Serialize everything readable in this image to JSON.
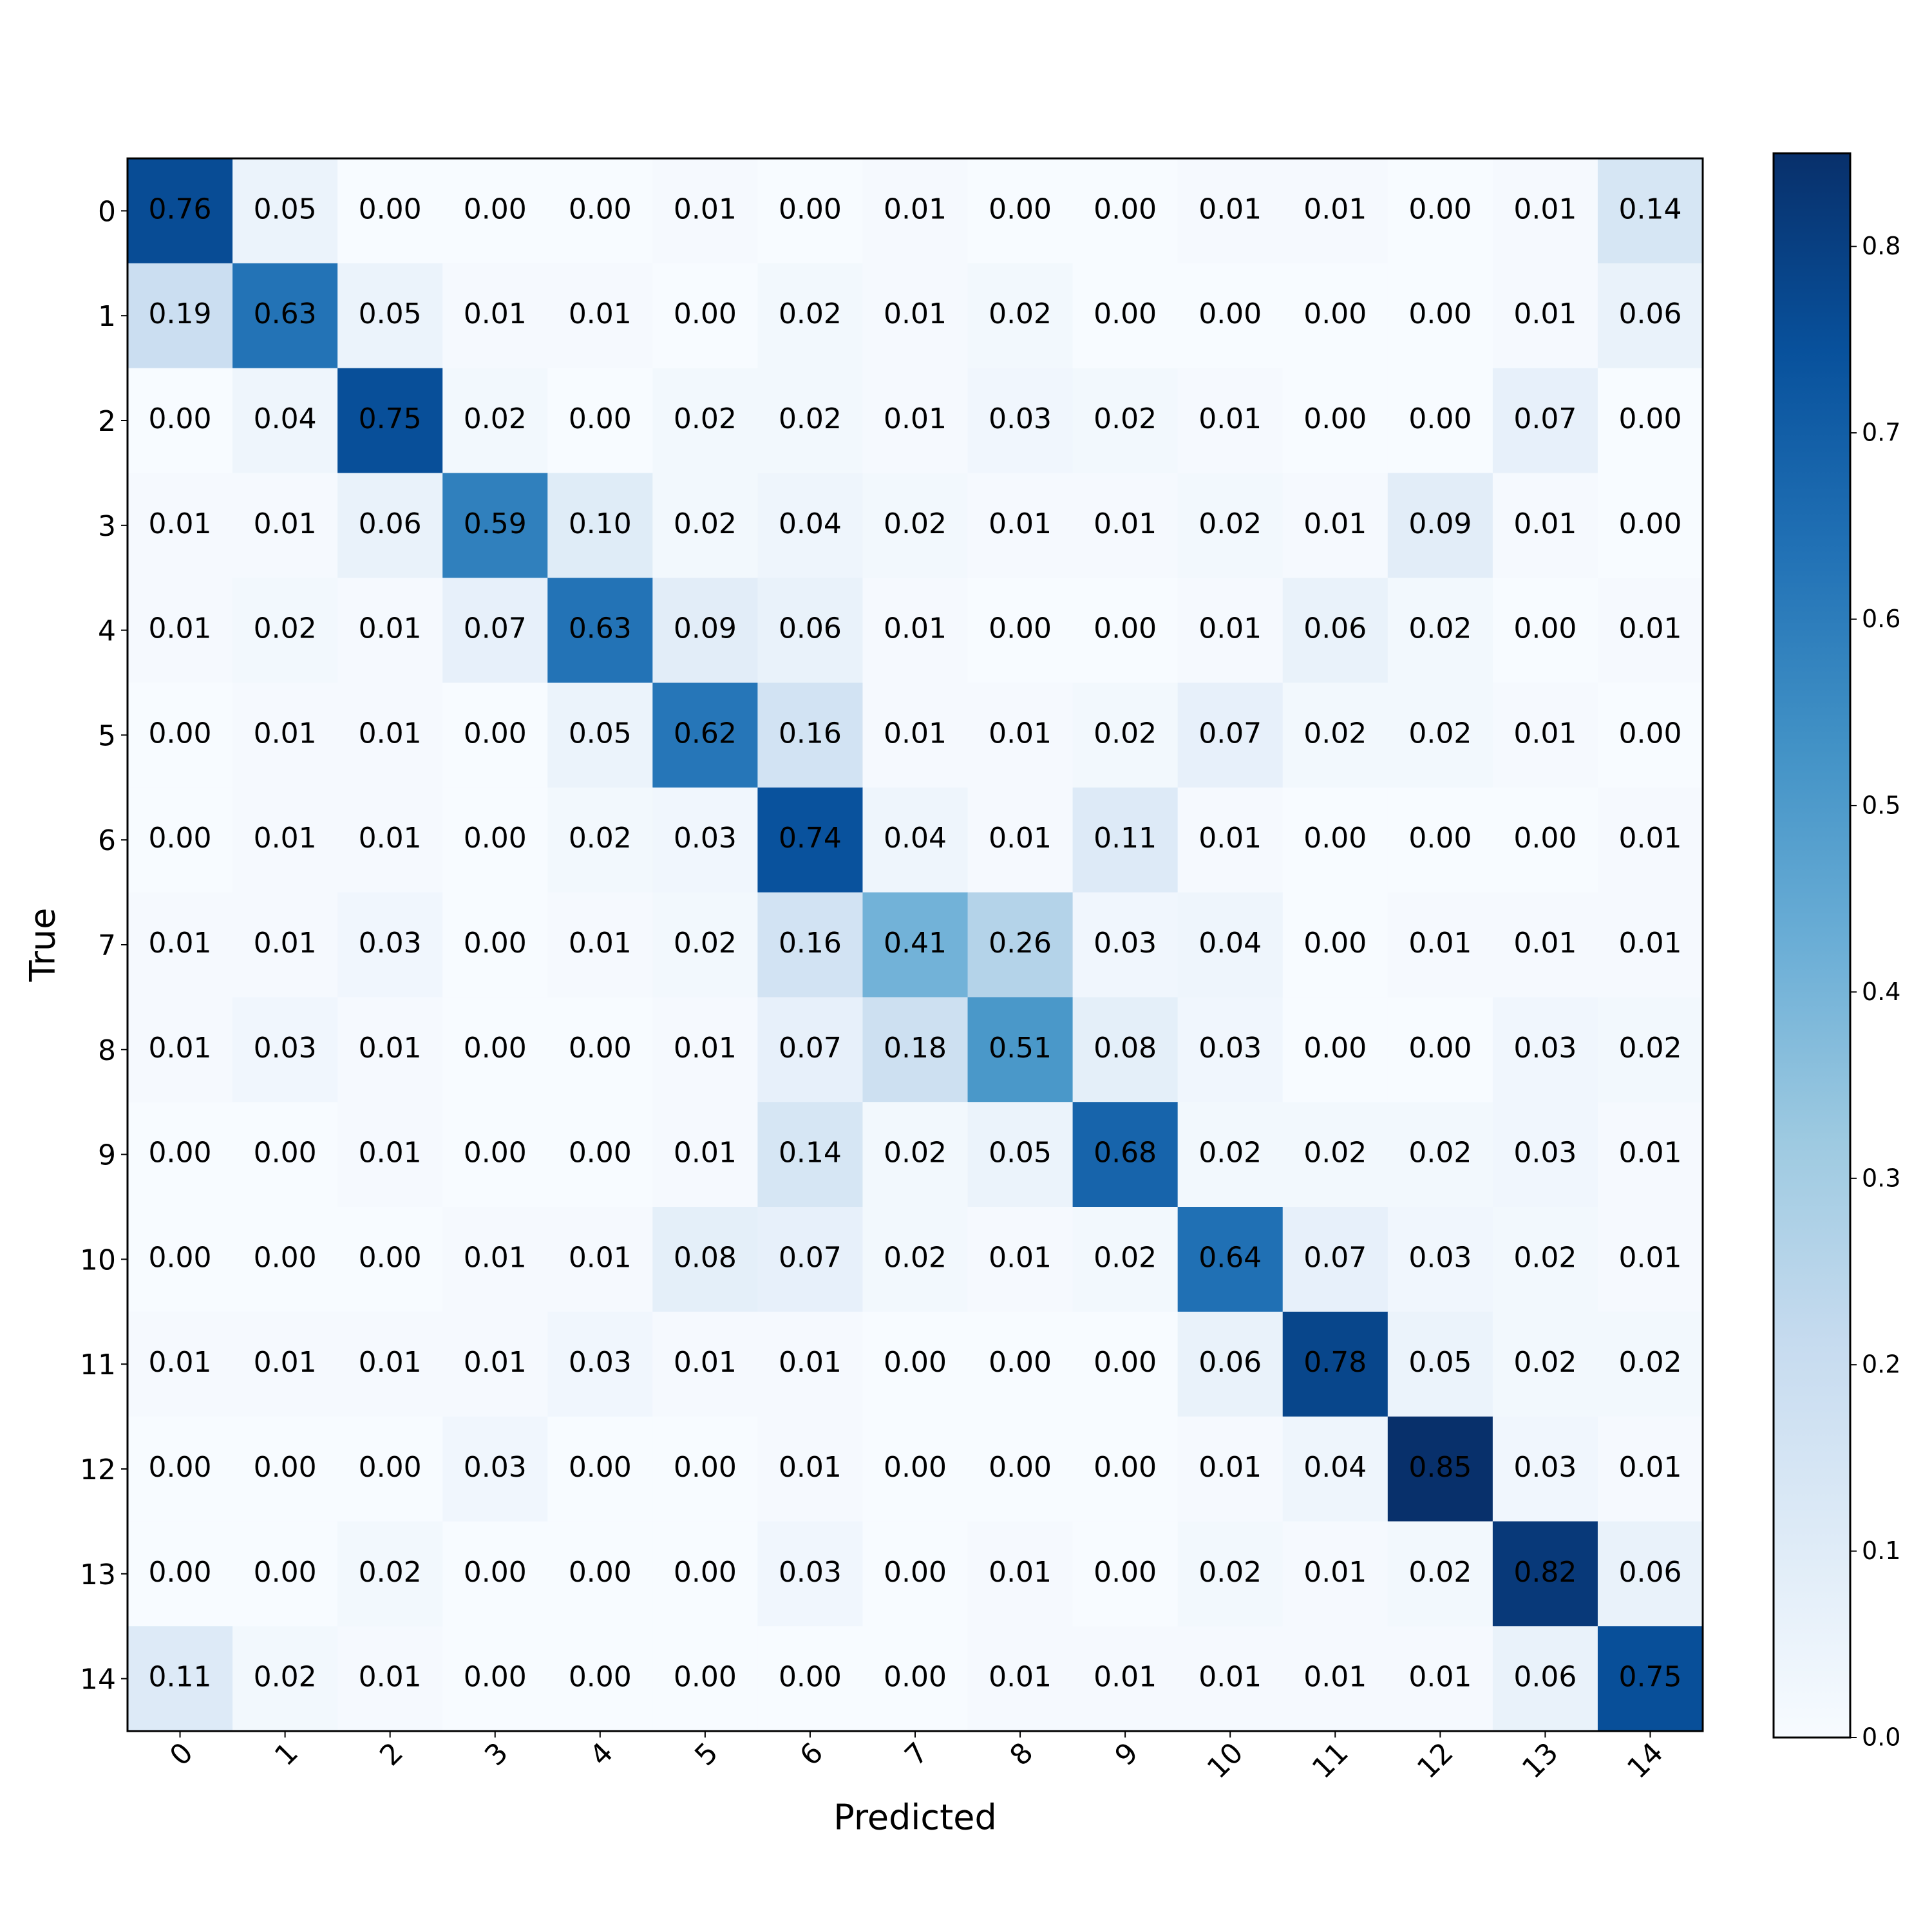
{
  "chart_data": {
    "type": "heatmap",
    "x_label": "Predicted",
    "y_label": "True",
    "colormap": "Blues",
    "x_categories": [
      "0",
      "1",
      "2",
      "3",
      "4",
      "5",
      "6",
      "7",
      "8",
      "9",
      "10",
      "11",
      "12",
      "13",
      "14"
    ],
    "y_categories": [
      "0",
      "1",
      "2",
      "3",
      "4",
      "5",
      "6",
      "7",
      "8",
      "9",
      "10",
      "11",
      "12",
      "13",
      "14"
    ],
    "values": [
      [
        0.76,
        0.05,
        0,
        0,
        0,
        0.01,
        0,
        0.01,
        0,
        0,
        0.01,
        0.01,
        0,
        0.01,
        0.14
      ],
      [
        0.19,
        0.63,
        0.05,
        0.01,
        0.01,
        0,
        0.02,
        0.01,
        0.02,
        0,
        0,
        0,
        0,
        0.01,
        0.06
      ],
      [
        0,
        0.04,
        0.75,
        0.02,
        0,
        0.02,
        0.02,
        0.01,
        0.03,
        0.02,
        0.01,
        0,
        0,
        0.07,
        0
      ],
      [
        0.01,
        0.01,
        0.06,
        0.59,
        0.1,
        0.02,
        0.04,
        0.02,
        0.01,
        0.01,
        0.02,
        0.01,
        0.09,
        0.01,
        0
      ],
      [
        0.01,
        0.02,
        0.01,
        0.07,
        0.63,
        0.09,
        0.06,
        0.01,
        0,
        0,
        0.01,
        0.06,
        0.02,
        0,
        0.01
      ],
      [
        0,
        0.01,
        0.01,
        0,
        0.05,
        0.62,
        0.16,
        0.01,
        0.01,
        0.02,
        0.07,
        0.02,
        0.02,
        0.01,
        0
      ],
      [
        0,
        0.01,
        0.01,
        0,
        0.02,
        0.03,
        0.74,
        0.04,
        0.01,
        0.11,
        0.01,
        0,
        0,
        0,
        0.01
      ],
      [
        0.01,
        0.01,
        0.03,
        0,
        0.01,
        0.02,
        0.16,
        0.41,
        0.26,
        0.03,
        0.04,
        0,
        0.01,
        0.01,
        0.01
      ],
      [
        0.01,
        0.03,
        0.01,
        0,
        0,
        0.01,
        0.07,
        0.18,
        0.51,
        0.08,
        0.03,
        0,
        0,
        0.03,
        0.02
      ],
      [
        0,
        0,
        0.01,
        0,
        0,
        0.01,
        0.14,
        0.02,
        0.05,
        0.68,
        0.02,
        0.02,
        0.02,
        0.03,
        0.01
      ],
      [
        0,
        0,
        0,
        0.01,
        0.01,
        0.08,
        0.07,
        0.02,
        0.01,
        0.02,
        0.64,
        0.07,
        0.03,
        0.02,
        0.01
      ],
      [
        0.01,
        0.01,
        0.01,
        0.01,
        0.03,
        0.01,
        0.01,
        0,
        0,
        0,
        0.06,
        0.78,
        0.05,
        0.02,
        0.02
      ],
      [
        0,
        0,
        0,
        0.03,
        0,
        0,
        0.01,
        0,
        0,
        0,
        0.01,
        0.04,
        0.85,
        0.03,
        0.01
      ],
      [
        0,
        0,
        0.02,
        0,
        0,
        0,
        0.03,
        0,
        0.01,
        0,
        0.02,
        0.01,
        0.02,
        0.82,
        0.06
      ],
      [
        0.11,
        0.02,
        0.01,
        0,
        0,
        0,
        0,
        0,
        0.01,
        0.01,
        0.01,
        0.01,
        0.01,
        0.06,
        0.75
      ]
    ],
    "value_labels": [
      [
        "0.76",
        "0.05",
        "0.00",
        "0.00",
        "0.00",
        "0.01",
        "0.00",
        "0.01",
        "0.00",
        "0.00",
        "0.01",
        "0.01",
        "0.00",
        "0.01",
        "0.14"
      ],
      [
        "0.19",
        "0.63",
        "0.05",
        "0.01",
        "0.01",
        "0.00",
        "0.02",
        "0.01",
        "0.02",
        "0.00",
        "0.00",
        "0.00",
        "0.00",
        "0.01",
        "0.06"
      ],
      [
        "0.00",
        "0.04",
        "0.75",
        "0.02",
        "0.00",
        "0.02",
        "0.02",
        "0.01",
        "0.03",
        "0.02",
        "0.01",
        "0.00",
        "0.00",
        "0.07",
        "0.00"
      ],
      [
        "0.01",
        "0.01",
        "0.06",
        "0.59",
        "0.10",
        "0.02",
        "0.04",
        "0.02",
        "0.01",
        "0.01",
        "0.02",
        "0.01",
        "0.09",
        "0.01",
        "0.00"
      ],
      [
        "0.01",
        "0.02",
        "0.01",
        "0.07",
        "0.63",
        "0.09",
        "0.06",
        "0.01",
        "0.00",
        "0.00",
        "0.01",
        "0.06",
        "0.02",
        "0.00",
        "0.01"
      ],
      [
        "0.00",
        "0.01",
        "0.01",
        "0.00",
        "0.05",
        "0.62",
        "0.16",
        "0.01",
        "0.01",
        "0.02",
        "0.07",
        "0.02",
        "0.02",
        "0.01",
        "0.00"
      ],
      [
        "0.00",
        "0.01",
        "0.01",
        "0.00",
        "0.02",
        "0.03",
        "0.74",
        "0.04",
        "0.01",
        "0.11",
        "0.01",
        "0.00",
        "0.00",
        "0.00",
        "0.01"
      ],
      [
        "0.01",
        "0.01",
        "0.03",
        "0.00",
        "0.01",
        "0.02",
        "0.16",
        "0.41",
        "0.26",
        "0.03",
        "0.04",
        "0.00",
        "0.01",
        "0.01",
        "0.01"
      ],
      [
        "0.01",
        "0.03",
        "0.01",
        "0.00",
        "0.00",
        "0.01",
        "0.07",
        "0.18",
        "0.51",
        "0.08",
        "0.03",
        "0.00",
        "0.00",
        "0.03",
        "0.02"
      ],
      [
        "0.00",
        "0.00",
        "0.01",
        "0.00",
        "0.00",
        "0.01",
        "0.14",
        "0.02",
        "0.05",
        "0.68",
        "0.02",
        "0.02",
        "0.02",
        "0.03",
        "0.01"
      ],
      [
        "0.00",
        "0.00",
        "0.00",
        "0.01",
        "0.01",
        "0.08",
        "0.07",
        "0.02",
        "0.01",
        "0.02",
        "0.64",
        "0.07",
        "0.03",
        "0.02",
        "0.01"
      ],
      [
        "0.01",
        "0.01",
        "0.01",
        "0.01",
        "0.03",
        "0.01",
        "0.01",
        "0.00",
        "0.00",
        "0.00",
        "0.06",
        "0.78",
        "0.05",
        "0.02",
        "0.02"
      ],
      [
        "0.00",
        "0.00",
        "0.00",
        "0.03",
        "0.00",
        "0.00",
        "0.01",
        "0.00",
        "0.00",
        "0.00",
        "0.01",
        "0.04",
        "0.85",
        "0.03",
        "0.01"
      ],
      [
        "0.00",
        "0.00",
        "0.02",
        "0.00",
        "0.00",
        "0.00",
        "0.03",
        "0.00",
        "0.01",
        "0.00",
        "0.02",
        "0.01",
        "0.02",
        "0.82",
        "0.06"
      ],
      [
        "0.11",
        "0.02",
        "0.01",
        "0.00",
        "0.00",
        "0.00",
        "0.00",
        "0.00",
        "0.01",
        "0.01",
        "0.01",
        "0.01",
        "0.01",
        "0.06",
        "0.75"
      ]
    ],
    "clim": [
      0,
      0.85
    ],
    "cticks": [
      {
        "value": 0,
        "label": "0.0"
      },
      0.1,
      0.2,
      0.3,
      0.4,
      0.5,
      0.6,
      0.7,
      0.8
    ]
  }
}
